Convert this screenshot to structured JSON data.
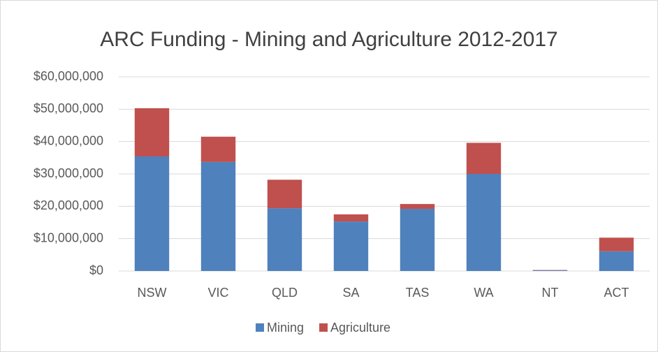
{
  "chart_data": {
    "type": "stacked_bar",
    "title": "ARC Funding - Mining and Agriculture 2012-2017",
    "categories": [
      "NSW",
      "VIC",
      "QLD",
      "SA",
      "TAS",
      "WA",
      "NT",
      "ACT"
    ],
    "series": [
      {
        "name": "Mining",
        "color": "#4f81bd",
        "values": [
          35400000,
          33700000,
          19400000,
          15300000,
          19200000,
          30000000,
          200000,
          6100000
        ]
      },
      {
        "name": "Agriculture",
        "color": "#c0504d",
        "values": [
          14900000,
          7800000,
          8800000,
          2200000,
          1500000,
          9600000,
          100000,
          4200000
        ]
      }
    ],
    "ylim": [
      0,
      60000000
    ],
    "yticks": [
      {
        "value": 0,
        "label": "$0"
      },
      {
        "value": 10000000,
        "label": "$10,000,000"
      },
      {
        "value": 20000000,
        "label": "$20,000,000"
      },
      {
        "value": 30000000,
        "label": "$30,000,000"
      },
      {
        "value": 40000000,
        "label": "$40,000,000"
      },
      {
        "value": 50000000,
        "label": "$50,000,000"
      },
      {
        "value": 60000000,
        "label": "$60,000,000"
      }
    ],
    "grid": true,
    "legend": "bottom"
  }
}
